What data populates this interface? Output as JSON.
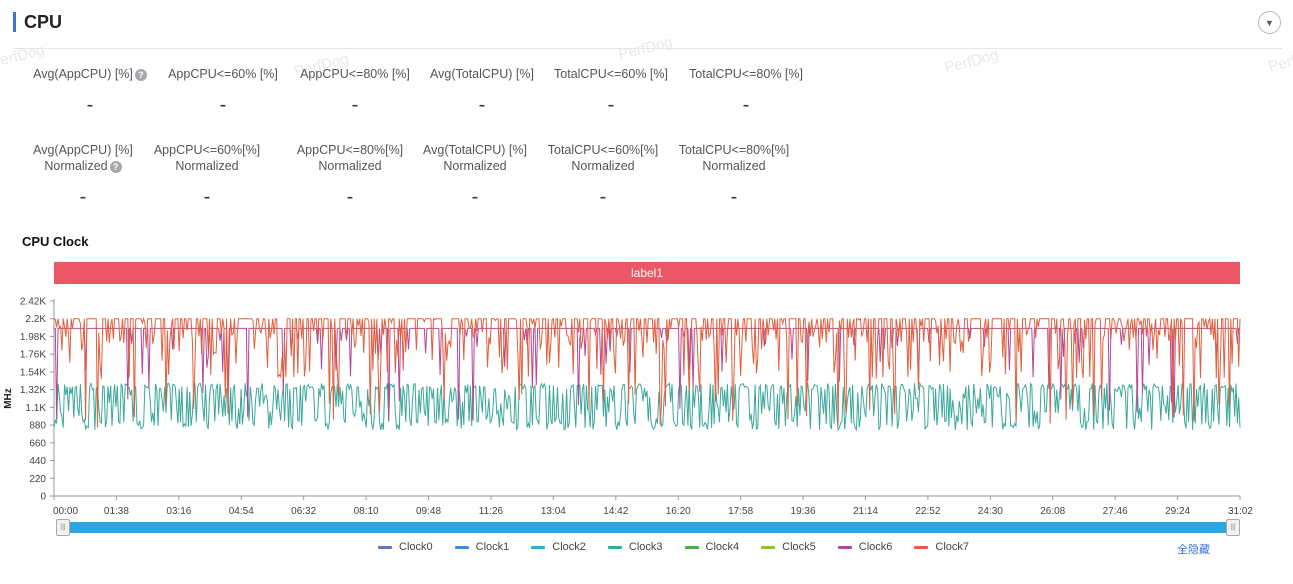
{
  "header": {
    "title": "CPU",
    "collapse_icon": "▼"
  },
  "watermark": "PerfDog",
  "metrics_row1": [
    {
      "label": "Avg(AppCPU) [%]",
      "help": true,
      "value": "-"
    },
    {
      "label": "AppCPU<=60% [%]",
      "help": false,
      "value": "-"
    },
    {
      "label": "AppCPU<=80% [%]",
      "help": false,
      "value": "-"
    },
    {
      "label": "Avg(TotalCPU) [%]",
      "help": false,
      "value": "-"
    },
    {
      "label": "TotalCPU<=60% [%]",
      "help": false,
      "value": "-"
    },
    {
      "label": "TotalCPU<=80% [%]",
      "help": false,
      "value": "-"
    }
  ],
  "metrics_row2": [
    {
      "label": "Avg(AppCPU) [%]",
      "label2": "Normalized",
      "help": true,
      "value": "-"
    },
    {
      "label": "AppCPU<=60%[%]",
      "label2": "Normalized",
      "help": false,
      "value": "-"
    },
    {
      "label": "AppCPU<=80%[%]",
      "label2": "Normalized",
      "help": false,
      "value": "-"
    },
    {
      "label": "Avg(TotalCPU) [%]",
      "label2": "Normalized",
      "help": false,
      "value": "-"
    },
    {
      "label": "TotalCPU<=60%[%]",
      "label2": "Normalized",
      "help": false,
      "value": "-"
    },
    {
      "label": "TotalCPU<=80%[%]",
      "label2": "Normalized",
      "help": false,
      "value": "-"
    }
  ],
  "section_title": "CPU Clock",
  "label_band": "label1",
  "hide_all": "全隐藏",
  "chart_data": {
    "type": "line",
    "ylabel": "MHz",
    "y_ticks": [
      "0",
      "220",
      "440",
      "660",
      "880",
      "1.1K",
      "1.32K",
      "1.54K",
      "1.76K",
      "1.98K",
      "2.2K",
      "2.42K"
    ],
    "ylim": [
      0,
      2420
    ],
    "x_ticks": [
      "00:00",
      "01:38",
      "03:16",
      "04:54",
      "06:32",
      "08:10",
      "09:48",
      "11:26",
      "13:04",
      "14:42",
      "16:20",
      "17:58",
      "19:36",
      "21:14",
      "22:52",
      "24:30",
      "26:08",
      "27:46",
      "29:24",
      "31:02"
    ],
    "x_range_seconds": [
      0,
      1862
    ],
    "legend_placement": "bottom",
    "series": [
      {
        "name": "Clock0",
        "color": "#6a6fc0",
        "approx_range": [
          800,
          1400
        ]
      },
      {
        "name": "Clock1",
        "color": "#3a8ee6",
        "approx_range": [
          800,
          1400
        ]
      },
      {
        "name": "Clock2",
        "color": "#35a9d8",
        "approx_range": [
          800,
          1400
        ]
      },
      {
        "name": "Clock3",
        "color": "#3aa89a",
        "approx_range": [
          780,
          1400
        ]
      },
      {
        "name": "Clock4",
        "color": "#3cb44b",
        "approx_range": [
          800,
          1400
        ]
      },
      {
        "name": "Clock5",
        "color": "#8fc31f",
        "approx_range": [
          800,
          1400
        ]
      },
      {
        "name": "Clock6",
        "color": "#b5479b",
        "baseline": 2080,
        "approx_range": [
          780,
          2200
        ]
      },
      {
        "name": "Clock7",
        "color": "#e0603f",
        "approx_range": [
          800,
          2200
        ]
      }
    ]
  }
}
